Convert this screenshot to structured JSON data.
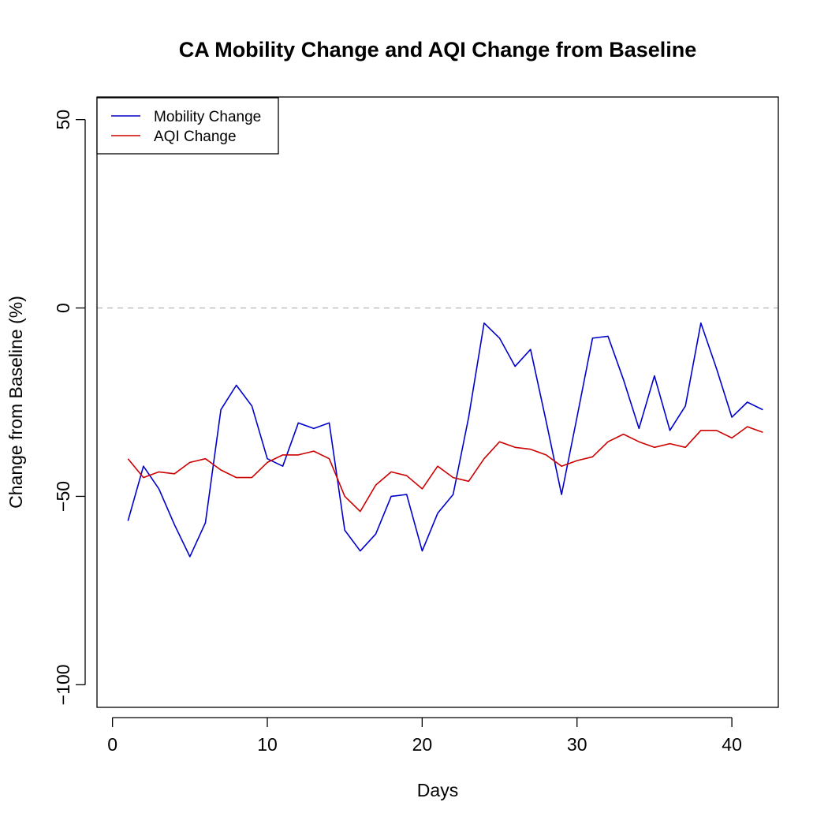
{
  "chart_data": {
    "type": "line",
    "title": "CA Mobility Change and AQI Change from Baseline",
    "xlabel": "Days",
    "ylabel": "Change from Baseline (%)",
    "xlim": [
      -1,
      43
    ],
    "ylim": [
      -106,
      56
    ],
    "x_ticks": [
      0,
      10,
      20,
      30,
      40
    ],
    "y_ticks": [
      50,
      0,
      -50,
      -100
    ],
    "reference_line": {
      "y": 0,
      "style": "dashed",
      "color": "#bdbdbd"
    },
    "grid": false,
    "legend_position": "top-left",
    "x": [
      1,
      2,
      3,
      4,
      5,
      6,
      7,
      8,
      9,
      10,
      11,
      12,
      13,
      14,
      15,
      16,
      17,
      18,
      19,
      20,
      21,
      22,
      23,
      24,
      25,
      26,
      27,
      28,
      29,
      30,
      31,
      32,
      33,
      34,
      35,
      36,
      37,
      38,
      39,
      40,
      41,
      42
    ],
    "series": [
      {
        "name": "Mobility Change",
        "color": "#0000cc",
        "values": [
          -56.5,
          -42,
          -48,
          -57.5,
          -66,
          -57,
          -27,
          -20.5,
          -26,
          -40,
          -42,
          -30.5,
          -32,
          -30.5,
          -59,
          -64.5,
          -60,
          -50,
          -49.5,
          -64.5,
          -54.5,
          -49.5,
          -29,
          -4,
          -8,
          -15.5,
          -11,
          -30,
          -49.5,
          -29,
          -8,
          -7.5,
          -19,
          -32,
          -18,
          -32.5,
          -26,
          -4,
          -16,
          -29,
          -25,
          -27
        ]
      },
      {
        "name": "AQI Change",
        "color": "#cc0000",
        "values": [
          -40,
          -45,
          -43.5,
          -44,
          -41,
          -40,
          -43,
          -45,
          -45,
          -41,
          -39,
          -39,
          -38,
          -40,
          -50,
          -54,
          -47,
          -43.5,
          -44.5,
          -48,
          -42,
          -45,
          -46,
          -40,
          -35.5,
          -37,
          -37.5,
          -39,
          -42,
          -40.5,
          -39.5,
          -35.5,
          -33.5,
          -35.5,
          -37,
          -36,
          -37,
          -32.5,
          -32.5,
          -34.5,
          -31.5,
          -33
        ]
      }
    ]
  }
}
